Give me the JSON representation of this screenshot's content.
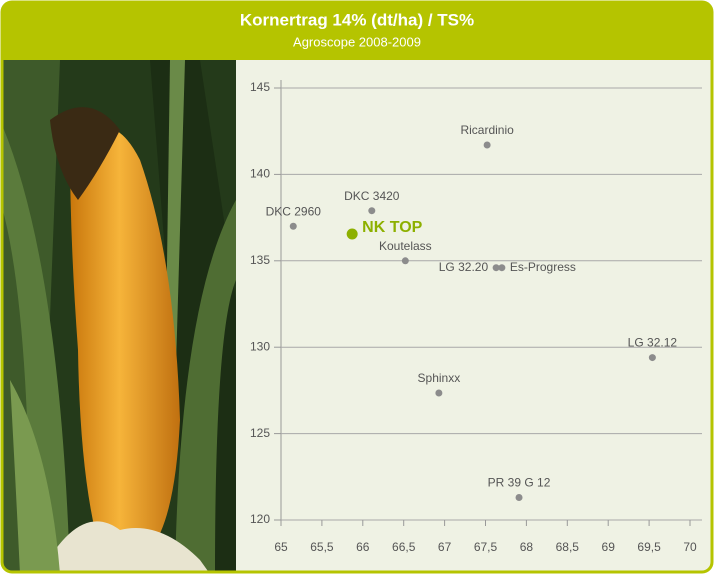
{
  "chart_data": {
    "type": "scatter",
    "title": "Kornertrag 14% (dt/ha) / TS%",
    "subtitle": "Agroscope 2008-2009",
    "point_labels": [
      "DKC 2960",
      "DKC 3420",
      "NK TOP",
      "Koutelass",
      "Ricardinio",
      "LG 32.20",
      "Es-Progress",
      "LG 32.12",
      "Sphinxx",
      "PR 39 G 12"
    ],
    "x": [
      65.15,
      66.11,
      65.87,
      66.52,
      67.52,
      67.63,
      67.7,
      69.54,
      66.93,
      67.91
    ],
    "values": [
      137,
      137.9,
      136.55,
      135,
      141.7,
      134.6,
      134.6,
      129.4,
      127.35,
      121.3
    ],
    "colors": [
      "#8c8c8c",
      "#8c8c8c",
      "#8db000",
      "#8c8c8c",
      "#8c8c8c",
      "#8c8c8c",
      "#8c8c8c",
      "#8c8c8c",
      "#8c8c8c",
      "#8c8c8c"
    ],
    "xlim": [
      65,
      70
    ],
    "xticks": [
      65,
      {
        "value": 65.5,
        "label": "65,5"
      },
      66,
      {
        "value": 66.5,
        "label": "66,5"
      },
      67,
      {
        "value": 67.5,
        "label": "67,5"
      },
      68,
      {
        "value": 68.5,
        "label": "68,5"
      },
      69,
      {
        "value": 69.5,
        "label": "69,5"
      },
      70
    ],
    "ylim": [
      120,
      145
    ],
    "yticks": [
      120,
      125,
      130,
      135,
      140,
      145
    ],
    "grid": true
  }
}
